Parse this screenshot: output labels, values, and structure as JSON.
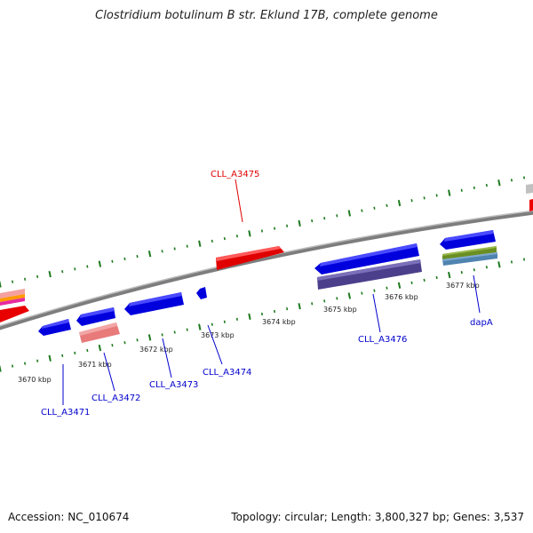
{
  "title": "Clostridium botulinum B str. Eklund 17B, complete genome",
  "footer": {
    "accession": "Accession: NC_010674",
    "summary": "Topology: circular; Length: 3,800,327 bp; Genes: 3,537"
  },
  "colors": {
    "forward_gene": "#ff0000",
    "reverse_gene": "#0000ee",
    "tick": "#1e7a1e",
    "backbone": "#8c8c8c",
    "label_blue": "#0000cc",
    "label_red": "#dd0000"
  },
  "scale_labels": [
    "3670 kbp",
    "3671 kbp",
    "3672 kbp",
    "3673 kbp",
    "3674 kbp",
    "3675 kbp",
    "3676 kbp",
    "3677 kbp"
  ],
  "gene_labels": {
    "forward": [
      "CLL_A3475"
    ],
    "reverse": [
      "CLL_A3471",
      "CLL_A3472",
      "CLL_A3473",
      "CLL_A3474",
      "CLL_A3476",
      "dapA"
    ]
  }
}
